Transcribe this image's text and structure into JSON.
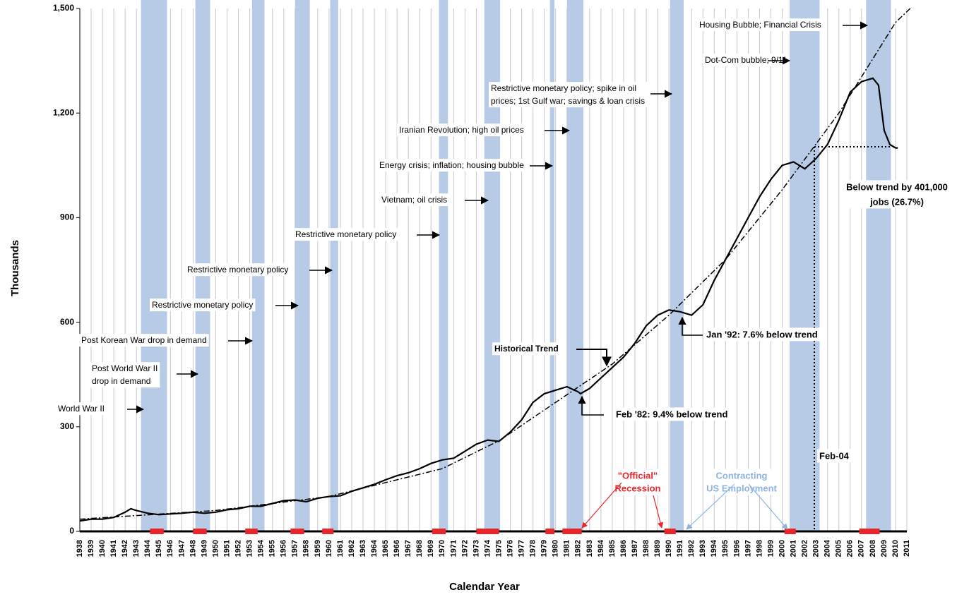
{
  "chart_data": {
    "type": "line",
    "y_label": "Thousands",
    "x_label": "Calendar Year",
    "xlim": [
      1938,
      2011
    ],
    "xticks": [
      1938,
      1939,
      1940,
      1941,
      1942,
      1943,
      1944,
      1945,
      1946,
      1947,
      1948,
      1949,
      1950,
      1951,
      1952,
      1953,
      1954,
      1955,
      1956,
      1957,
      1958,
      1959,
      1960,
      1961,
      1962,
      1963,
      1964,
      1965,
      1966,
      1967,
      1968,
      1969,
      1970,
      1971,
      1972,
      1973,
      1974,
      1975,
      1976,
      1977,
      1978,
      1979,
      1980,
      1981,
      1982,
      1983,
      1984,
      1985,
      1986,
      1987,
      1988,
      1989,
      1990,
      1991,
      1992,
      1993,
      1994,
      1995,
      1996,
      1997,
      1998,
      1999,
      2000,
      2001,
      2002,
      2003,
      2004,
      2005,
      2006,
      2007,
      2008,
      2009,
      2010,
      2011
    ],
    "ylim": [
      0,
      1500
    ],
    "yticks": [
      0,
      300,
      600,
      900,
      {
        "value": 1200,
        "label": "1,200"
      },
      {
        "value": 1500,
        "label": "1,500"
      }
    ],
    "grid": "x",
    "series": [
      {
        "color": "#000000",
        "linestyle": "solid",
        "x": [
          1938,
          1939,
          1940,
          1941,
          1942,
          1942.5,
          1943,
          1944,
          1945,
          1946,
          1947,
          1948,
          1949,
          1950,
          1951,
          1952,
          1953,
          1954,
          1955,
          1956,
          1957,
          1958,
          1959,
          1960,
          1961,
          1962,
          1963,
          1964,
          1965,
          1966,
          1967,
          1968,
          1969,
          1970,
          1971,
          1972,
          1973,
          1974,
          1975,
          1976,
          1977,
          1978,
          1979,
          1980,
          1981,
          1982,
          1982.2,
          1983,
          1984,
          1985,
          1986,
          1987,
          1988,
          1989,
          1990,
          1991,
          1992,
          1993,
          1994,
          1995,
          1996,
          1997,
          1998,
          1999,
          2000,
          2001,
          2002,
          2003,
          2004,
          2005,
          2006,
          2007,
          2008,
          2008.5,
          2009,
          2009.5,
          2010,
          2010.2
        ],
        "values": [
          30,
          35,
          35,
          40,
          55,
          65,
          60,
          52,
          48,
          50,
          52,
          55,
          52,
          55,
          62,
          65,
          72,
          72,
          80,
          88,
          90,
          85,
          95,
          100,
          102,
          115,
          125,
          135,
          148,
          160,
          168,
          180,
          195,
          205,
          210,
          230,
          250,
          262,
          258,
          285,
          320,
          370,
          395,
          405,
          415,
          400,
          395,
          410,
          440,
          470,
          500,
          540,
          590,
          620,
          635,
          630,
          620,
          650,
          720,
          780,
          840,
          900,
          960,
          1010,
          1050,
          1060,
          1040,
          1070,
          1110,
          1180,
          1260,
          1290,
          1300,
          1280,
          1150,
          1110,
          1100,
          1100
        ]
      },
      {
        "name": "Historical Trend",
        "color": "#000000",
        "linestyle": "dashdot",
        "x": [
          1938,
          1950,
          1960,
          1970,
          1975,
          1980,
          1985,
          1990,
          1995,
          2000,
          2005,
          2010,
          2011.3
        ],
        "values": [
          35,
          60,
          100,
          180,
          260,
          370,
          480,
          620,
          780,
          980,
          1200,
          1460,
          1500
        ]
      }
    ],
    "contracting": [
      [
        1943.4,
        1945.7
      ],
      [
        1948.2,
        1949.5
      ],
      [
        1953.2,
        1954.3
      ],
      [
        1957.0,
        1958.3
      ],
      [
        1960.1,
        1960.8
      ],
      [
        1969.7,
        1970.5
      ],
      [
        1973.7,
        1975.1
      ],
      [
        1979.5,
        1979.9
      ],
      [
        1981.0,
        1982.45
      ],
      [
        1990.1,
        1991.3
      ],
      [
        2000.65,
        2003.3
      ],
      [
        2007.4,
        2009.6
      ]
    ],
    "contracting_color": "#b7cbe6",
    "recessions": [
      [
        1944.2,
        1945.4
      ],
      [
        1948.0,
        1949.2
      ],
      [
        1952.6,
        1953.7
      ],
      [
        1956.6,
        1957.8
      ],
      [
        1959.4,
        1960.4
      ],
      [
        1969.1,
        1970.3
      ],
      [
        1973.0,
        1975.0
      ],
      [
        1979.1,
        1979.9
      ],
      [
        1980.6,
        1982.3
      ],
      [
        1989.6,
        1990.6
      ],
      [
        2000.2,
        2001.2
      ],
      [
        2006.8,
        2008.6
      ]
    ],
    "recession_color": "#e8262a",
    "annotations": [
      {
        "lines": [
          "World War II"
        ]
      },
      {
        "lines": [
          "Post World War II",
          "drop in demand"
        ]
      },
      {
        "lines": [
          "Post Korean War drop in demand"
        ]
      },
      {
        "lines": [
          "Restrictive monetary policy"
        ]
      },
      {
        "lines": [
          "Restrictive monetary policy"
        ]
      },
      {
        "lines": [
          "Restrictive monetary policy"
        ]
      },
      {
        "lines": [
          "Vietnam; oil crisis"
        ]
      },
      {
        "lines": [
          "Energy crisis; inflation; housing bubble"
        ]
      },
      {
        "lines": [
          "Iranian Revolution; high oil prices"
        ]
      },
      {
        "lines": [
          "Restrictive monetary policy;  spike in oil",
          "prices; 1st Gulf war; savings & loan crisis"
        ]
      },
      {
        "lines": [
          "Dot-Com bubble; 9/11"
        ]
      },
      {
        "lines": [
          "Housing Bubble; Financial Crisis"
        ]
      },
      {
        "lines": [
          "Feb '82: 9.4% below trend"
        ],
        "bold": true
      },
      {
        "lines": [
          "Jan '92: 7.6% below trend"
        ],
        "bold": true
      },
      {
        "lines": [
          "Below trend by 401,000",
          "jobs (26.7%)"
        ],
        "bold": true
      },
      {
        "lines": [
          "Feb-04"
        ],
        "bold": true
      },
      {
        "lines": [
          "\"Official\"",
          "Recession"
        ],
        "bold": true,
        "color": "#e8262a"
      },
      {
        "lines": [
          "Contracting",
          "US Employment"
        ],
        "bold": true,
        "color": "#8db3e2"
      }
    ]
  }
}
